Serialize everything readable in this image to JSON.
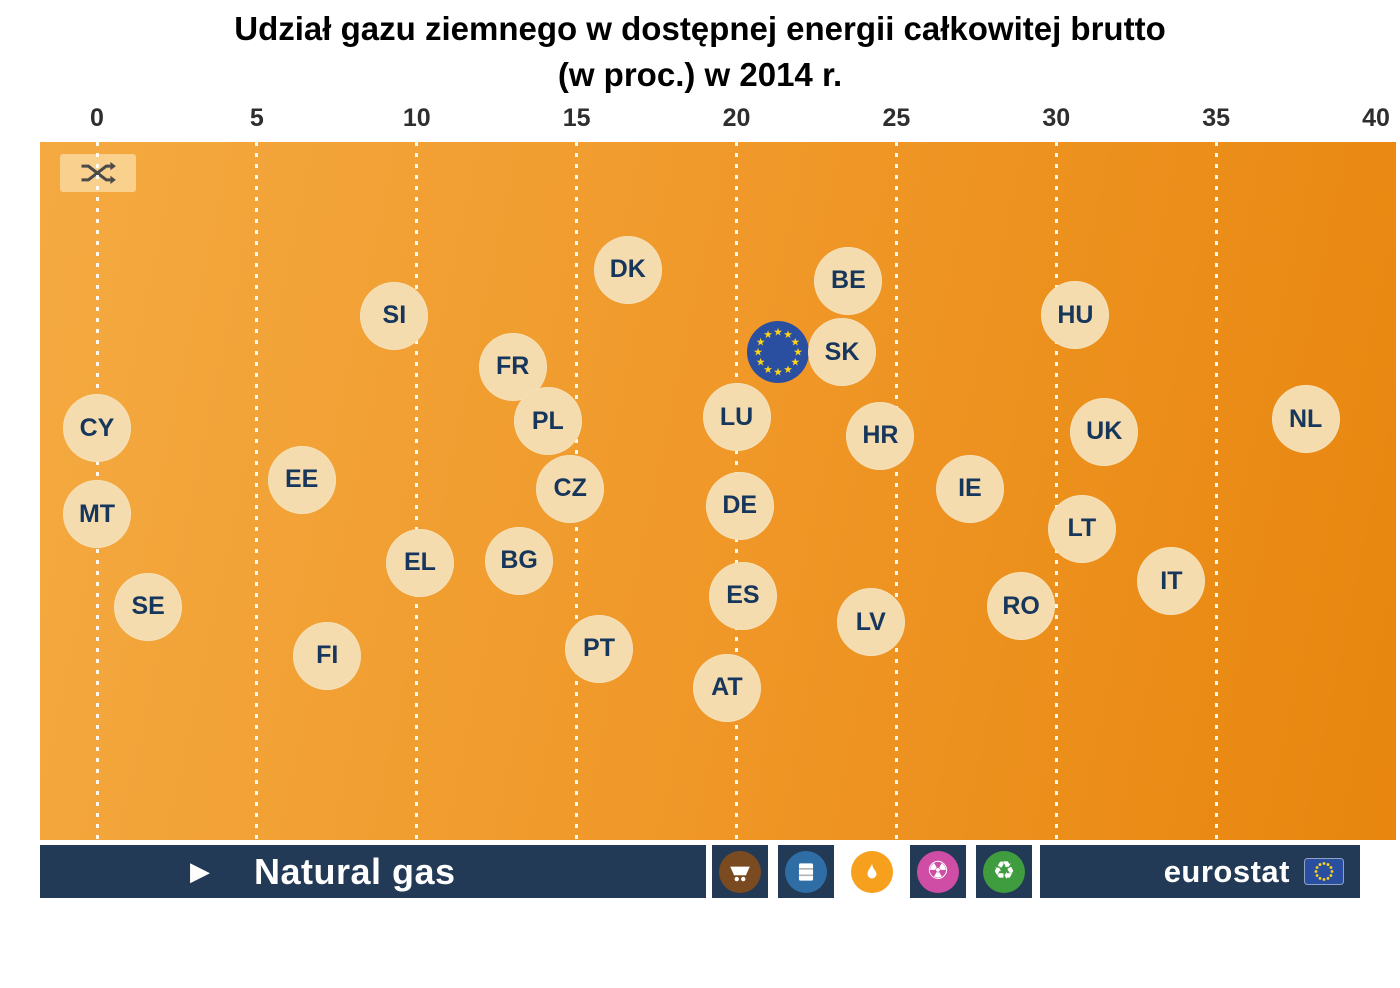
{
  "title": {
    "line1": "Udział gazu ziemnego w dostępnej energii całkowitej brutto",
    "line2": "(w proc.) w  2014 r."
  },
  "colors": {
    "navy": "#223a55",
    "bubble": "#f5dcae",
    "bubble_text": "#16365c",
    "plot_light": "#f4aa41",
    "plot_dark": "#e8860e",
    "eu_blue": "#2b4fa0",
    "star_yellow": "#ffd617"
  },
  "toolbar": {
    "play_icon": "▶",
    "series_label": "Natural gas",
    "brand": "eurostat",
    "categories": [
      {
        "name": "coal",
        "color": "#7a4a21",
        "active": false
      },
      {
        "name": "oil",
        "color": "#2f6ea5",
        "active": false
      },
      {
        "name": "natural-gas",
        "color": "#f6a01d",
        "active": true
      },
      {
        "name": "nuclear",
        "color": "#cf4da4",
        "active": false
      },
      {
        "name": "renewables",
        "color": "#3f9c3f",
        "active": false
      }
    ]
  },
  "chart_data": {
    "type": "scatter",
    "title": "Udział gazu ziemnego w dostępnej energii całkowitej brutto (w proc.) w 2014 r.",
    "series_label": "Natural gas",
    "year": "2014",
    "unit": "%",
    "xlabel": "",
    "ylabel": "",
    "x_axis": {
      "min": 0,
      "max": 40,
      "ticks": [
        0,
        5,
        10,
        15,
        20,
        25,
        30,
        35,
        40
      ]
    },
    "grid": "dashed-vertical-white",
    "points": [
      {
        "code": "CY",
        "value": 0.0,
        "y": 0.41
      },
      {
        "code": "MT",
        "value": 0.0,
        "y": 0.533
      },
      {
        "code": "SE",
        "value": 1.6,
        "y": 0.666
      },
      {
        "code": "EE",
        "value": 6.4,
        "y": 0.484
      },
      {
        "code": "FI",
        "value": 7.2,
        "y": 0.736
      },
      {
        "code": "SI",
        "value": 9.3,
        "y": 0.249
      },
      {
        "code": "EL",
        "value": 10.1,
        "y": 0.603
      },
      {
        "code": "FR",
        "value": 13.0,
        "y": 0.322
      },
      {
        "code": "BG",
        "value": 13.2,
        "y": 0.6
      },
      {
        "code": "PL",
        "value": 14.1,
        "y": 0.4
      },
      {
        "code": "CZ",
        "value": 14.8,
        "y": 0.497
      },
      {
        "code": "PT",
        "value": 15.7,
        "y": 0.726
      },
      {
        "code": "DK",
        "value": 16.6,
        "y": 0.183
      },
      {
        "code": "AT",
        "value": 19.7,
        "y": 0.782
      },
      {
        "code": "LU",
        "value": 20.0,
        "y": 0.394
      },
      {
        "code": "DE",
        "value": 20.1,
        "y": 0.521
      },
      {
        "code": "ES",
        "value": 20.2,
        "y": 0.65
      },
      {
        "code": "EU",
        "value": 21.3,
        "y": 0.301,
        "flag": true
      },
      {
        "code": "SK",
        "value": 23.3,
        "y": 0.301
      },
      {
        "code": "BE",
        "value": 23.5,
        "y": 0.199
      },
      {
        "code": "LV",
        "value": 24.2,
        "y": 0.688
      },
      {
        "code": "HR",
        "value": 24.5,
        "y": 0.421
      },
      {
        "code": "IE",
        "value": 27.3,
        "y": 0.497
      },
      {
        "code": "RO",
        "value": 28.9,
        "y": 0.665
      },
      {
        "code": "HU",
        "value": 30.6,
        "y": 0.248
      },
      {
        "code": "LT",
        "value": 30.8,
        "y": 0.554
      },
      {
        "code": "UK",
        "value": 31.5,
        "y": 0.415
      },
      {
        "code": "IT",
        "value": 33.6,
        "y": 0.629
      },
      {
        "code": "NL",
        "value": 37.8,
        "y": 0.397
      }
    ]
  }
}
